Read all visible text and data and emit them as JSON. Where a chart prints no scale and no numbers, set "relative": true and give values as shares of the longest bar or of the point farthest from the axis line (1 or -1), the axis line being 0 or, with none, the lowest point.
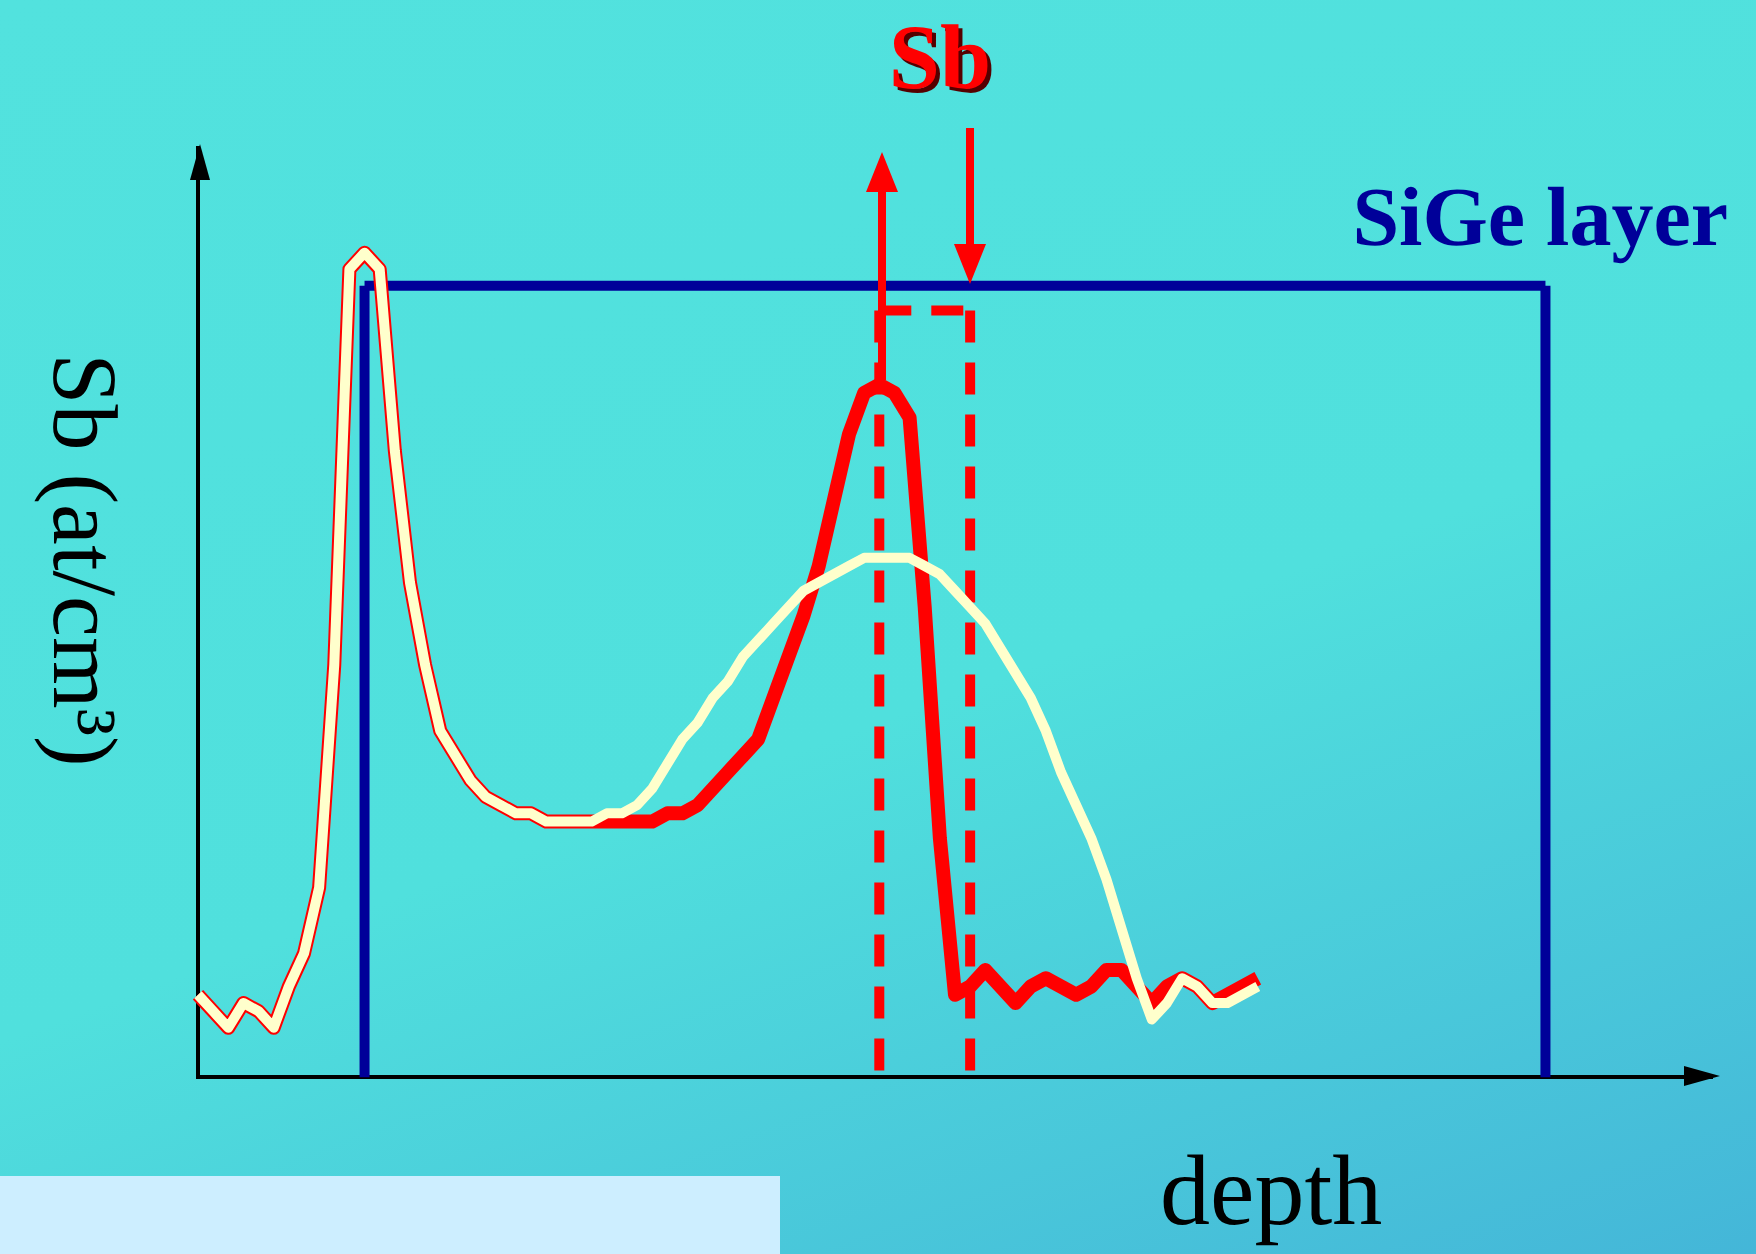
{
  "chart_data": {
    "type": "line",
    "relative": true,
    "grid": false,
    "legend": false,
    "marker": "none",
    "xlabel": "depth",
    "ylabel": "Sb (at/cm³)",
    "annotations": [
      "Sb"
    ],
    "categories": [
      null,
      null,
      null,
      null,
      null,
      null,
      null,
      null,
      null,
      null,
      null,
      null,
      null,
      null,
      null,
      null,
      null,
      null,
      null,
      null,
      null,
      null,
      null,
      null,
      null,
      null,
      null,
      null,
      null,
      null,
      null,
      null,
      null,
      null,
      null,
      null,
      null,
      null,
      null,
      null,
      null,
      null,
      null,
      null,
      null,
      null,
      null,
      null,
      null,
      null,
      null,
      null,
      null,
      null,
      null,
      null,
      null,
      null,
      null,
      null,
      null,
      null,
      null,
      null,
      null,
      null,
      null,
      null,
      null,
      null,
      null,
      null,
      null,
      null,
      null,
      null,
      null,
      null,
      null,
      null,
      null,
      null,
      null,
      null,
      null,
      null,
      null,
      null,
      null,
      null,
      null,
      null,
      null,
      null,
      null,
      null,
      null,
      null,
      null,
      null,
      null
    ],
    "series": [
      {
        "name": "SiGe layer",
        "color": "#000099",
        "values": [
          null,
          null,
          null,
          null,
          null,
          null,
          null,
          null,
          null,
          null,
          null,
          0.96,
          0.96,
          0.96,
          0.96,
          0.96,
          0.96,
          0.96,
          0.96,
          0.96,
          0.96,
          0.96,
          0.96,
          0.96,
          0.96,
          0.96,
          0.96,
          0.96,
          0.96,
          0.96,
          0.96,
          0.96,
          0.96,
          0.96,
          0.96,
          0.96,
          0.96,
          0.96,
          0.96,
          0.96,
          0.96,
          0.96,
          0.96,
          0.96,
          0.96,
          0.96,
          0.96,
          0.96,
          0.96,
          0.96,
          0.96,
          0.96,
          0.96,
          0.96,
          0.96,
          0.96,
          0.96,
          0.96,
          0.96,
          0.96,
          0.96,
          0.96,
          0.96,
          0.96,
          0.96,
          0.96,
          0.96,
          0.96,
          0.96,
          0.96,
          0.96,
          0.96,
          0.96,
          0.96,
          0.96,
          0.96,
          0.96,
          0.96,
          0.96,
          0.96,
          0.96,
          0.96,
          0.96,
          0.96,
          0.96,
          0.96,
          0.96,
          0.96,
          0.96,
          0.96,
          null,
          null,
          null,
          null,
          null,
          null,
          null,
          null,
          null,
          null,
          null
        ]
      },
      {
        "color": "#ff0000",
        "values": [
          0.1,
          0.08,
          0.06,
          0.09,
          0.08,
          0.06,
          0.11,
          0.15,
          0.23,
          0.5,
          0.98,
          1.0,
          0.98,
          0.76,
          0.6,
          0.5,
          0.42,
          0.39,
          0.36,
          0.34,
          0.33,
          0.32,
          0.32,
          0.31,
          0.31,
          0.31,
          0.31,
          0.31,
          0.31,
          0.31,
          0.31,
          0.32,
          0.32,
          0.33,
          0.35,
          0.37,
          0.39,
          0.41,
          0.46,
          0.51,
          0.56,
          0.62,
          0.7,
          0.78,
          0.83,
          0.84,
          0.83,
          0.8,
          0.57,
          0.29,
          0.1,
          0.11,
          0.13,
          0.11,
          0.09,
          0.11,
          0.12,
          0.11,
          0.1,
          0.11,
          0.13,
          0.13,
          0.11,
          0.09,
          0.11,
          0.12,
          0.11,
          0.09,
          0.1,
          0.11,
          0.12,
          null,
          null,
          null,
          null,
          null,
          null,
          null,
          null,
          null,
          null,
          null,
          null,
          null,
          null,
          null,
          null,
          null,
          null,
          null,
          null,
          null,
          null,
          null,
          null,
          null,
          null,
          null,
          null,
          null,
          null
        ]
      },
      {
        "color": "#ffffcc",
        "values": [
          0.1,
          0.08,
          0.06,
          0.09,
          0.08,
          0.06,
          0.11,
          0.15,
          0.23,
          0.5,
          0.98,
          1.0,
          0.98,
          0.76,
          0.6,
          0.5,
          0.42,
          0.39,
          0.36,
          0.34,
          0.33,
          0.32,
          0.32,
          0.31,
          0.31,
          0.31,
          0.31,
          0.32,
          0.32,
          0.33,
          0.35,
          0.38,
          0.41,
          0.43,
          0.46,
          0.48,
          0.51,
          0.53,
          0.55,
          0.57,
          0.59,
          0.6,
          0.61,
          0.62,
          0.63,
          0.63,
          0.63,
          0.63,
          0.62,
          0.61,
          0.59,
          0.57,
          0.55,
          0.52,
          0.49,
          0.46,
          0.42,
          0.37,
          0.33,
          0.29,
          0.24,
          0.18,
          0.12,
          0.07,
          0.09,
          0.12,
          0.11,
          0.09,
          0.09,
          0.1,
          0.11,
          null,
          null,
          null,
          null,
          null,
          null,
          null,
          null,
          null,
          null,
          null,
          null,
          null,
          null,
          null,
          null,
          null,
          null,
          null,
          null,
          null,
          null,
          null,
          null,
          null,
          null,
          null,
          null,
          null,
          null
        ]
      },
      {
        "color": "#ff0000",
        "line_style": "dashed",
        "values": [
          null,
          null,
          null,
          null,
          null,
          null,
          null,
          null,
          null,
          null,
          null,
          null,
          null,
          null,
          null,
          null,
          null,
          null,
          null,
          null,
          null,
          null,
          null,
          null,
          null,
          null,
          null,
          null,
          null,
          null,
          null,
          null,
          null,
          null,
          null,
          null,
          null,
          null,
          null,
          null,
          null,
          null,
          null,
          null,
          null,
          0.93,
          0.93,
          0.93,
          0.93,
          0.93,
          0.93,
          0.93,
          null,
          null,
          null,
          null,
          null,
          null,
          null,
          null,
          null,
          null,
          null,
          null,
          null,
          null,
          null,
          null,
          null,
          null,
          null,
          null,
          null,
          null,
          null,
          null,
          null,
          null,
          null,
          null,
          null,
          null,
          null,
          null,
          null,
          null,
          null,
          null,
          null,
          null,
          null,
          null,
          null,
          null,
          null,
          null,
          null,
          null,
          null,
          null,
          null
        ]
      }
    ]
  }
}
